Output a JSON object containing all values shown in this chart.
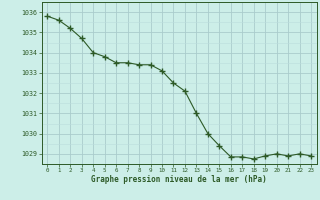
{
  "x": [
    0,
    1,
    2,
    3,
    4,
    5,
    6,
    7,
    8,
    9,
    10,
    11,
    12,
    13,
    14,
    15,
    16,
    17,
    18,
    19,
    20,
    21,
    22,
    23
  ],
  "y": [
    1035.8,
    1035.6,
    1035.2,
    1034.7,
    1034.0,
    1033.8,
    1033.5,
    1033.5,
    1033.4,
    1033.4,
    1033.1,
    1032.5,
    1032.1,
    1031.0,
    1030.0,
    1029.4,
    1028.85,
    1028.85,
    1028.75,
    1028.9,
    1029.0,
    1028.9,
    1029.0,
    1028.9
  ],
  "line_color": "#2d5a27",
  "marker_color": "#2d5a27",
  "bg_color": "#cceee8",
  "grid_major_color": "#aacccc",
  "grid_minor_color": "#bbdddd",
  "xlabel": "Graphe pression niveau de la mer (hPa)",
  "xlabel_color": "#2d5a27",
  "tick_color": "#2d5a27",
  "ylim": [
    1028.5,
    1036.5
  ],
  "xlim": [
    -0.5,
    23.5
  ],
  "yticks": [
    1029,
    1030,
    1031,
    1032,
    1033,
    1034,
    1035,
    1036
  ],
  "xticks": [
    0,
    1,
    2,
    3,
    4,
    5,
    6,
    7,
    8,
    9,
    10,
    11,
    12,
    13,
    14,
    15,
    16,
    17,
    18,
    19,
    20,
    21,
    22,
    23
  ]
}
